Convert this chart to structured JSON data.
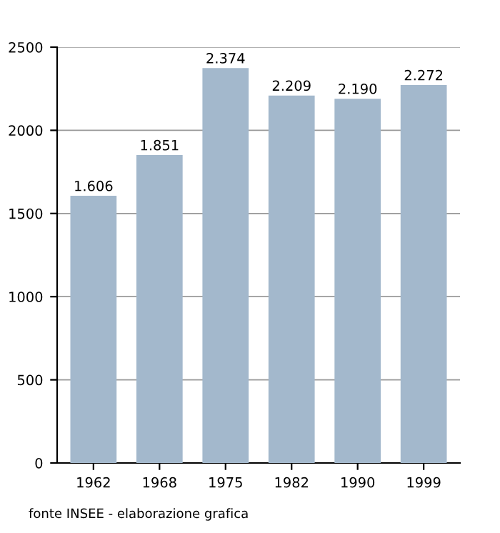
{
  "chart_data": {
    "type": "bar",
    "categories": [
      "1962",
      "1968",
      "1975",
      "1982",
      "1990",
      "1999"
    ],
    "values": [
      1606,
      1851,
      2374,
      2209,
      2190,
      2272
    ],
    "value_labels": [
      "1.606",
      "1.851",
      "2.374",
      "2.209",
      "2.190",
      "2.272"
    ],
    "color": "#a3b8cc",
    "ylim": [
      0,
      2500
    ],
    "yticks": [
      0,
      500,
      1000,
      1500,
      2000,
      2500
    ],
    "grid": "y",
    "annotations": [
      "fonte INSEE - elaborazione grafica"
    ]
  }
}
